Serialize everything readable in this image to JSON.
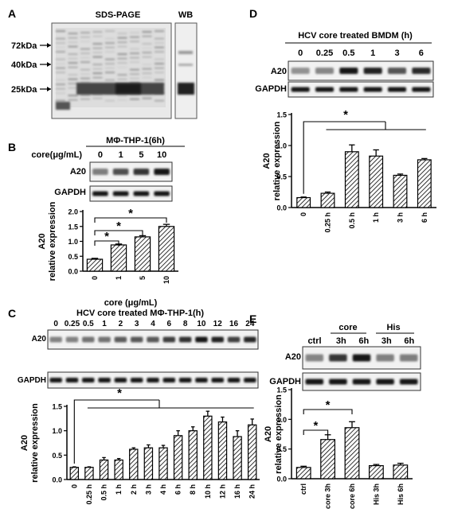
{
  "panels": {
    "A": {
      "label": "A",
      "gel_title": "SDS-PAGE",
      "wb_title": "WB",
      "markers": [
        "72kDa",
        "40kDa",
        "25kDa"
      ]
    },
    "B": {
      "label": "B",
      "title": "MΦ-THP-1(6h)",
      "dose_header": "core(μg/mL)",
      "doses": [
        "0",
        "1",
        "5",
        "10"
      ],
      "blots": [
        "A20",
        "GAPDH"
      ]
    },
    "C": {
      "label": "C",
      "title": "HCV  core  treated MΦ-THP-1(h)",
      "times": [
        "0",
        "0.25",
        "0.5",
        "1",
        "2",
        "3",
        "4",
        "6",
        "8",
        "10",
        "12",
        "16",
        "24"
      ],
      "blots": [
        "A20",
        "GAPDH"
      ]
    },
    "D": {
      "label": "D",
      "title": "HCV  core treated BMDM (h)",
      "times": [
        "0",
        "0.25",
        "0.5",
        "1",
        "3",
        "6"
      ],
      "blots": [
        "A20",
        "GAPDH"
      ]
    },
    "E": {
      "label": "E",
      "ctrl_label": "ctrl",
      "group_core": "core",
      "group_his": "His",
      "sub_labels": [
        "3h",
        "6h",
        "3h",
        "6h"
      ],
      "blots": [
        "A20",
        "GAPDH"
      ]
    }
  },
  "chart_data": [
    {
      "id": "B",
      "type": "bar",
      "categories": [
        "0",
        "1",
        "5",
        "10"
      ],
      "values": [
        0.4,
        0.88,
        1.15,
        1.5
      ],
      "errors": [
        0.03,
        0.03,
        0.04,
        0.07
      ],
      "xlabel": "core (μg/mL)",
      "ylabel": "A20 relative expression",
      "ylim": [
        0,
        2.0
      ],
      "yticks": [
        0,
        0.5,
        1.0,
        1.5,
        2.0
      ],
      "ytick_labels": [
        "0.0",
        "0.5",
        "1.0",
        "1.5",
        "2.0"
      ],
      "significance": [
        {
          "from": 0,
          "to": 1,
          "label": "*"
        },
        {
          "from": 0,
          "to": 2,
          "label": "*"
        },
        {
          "from": 0,
          "to": 3,
          "label": "*"
        }
      ]
    },
    {
      "id": "C",
      "type": "bar",
      "categories": [
        "0",
        "0.25 h",
        "0.5 h",
        "1 h",
        "2 h",
        "3 h",
        "4 h",
        "6 h",
        "8 h",
        "10 h",
        "12 h",
        "16 h",
        "24 h"
      ],
      "values": [
        0.25,
        0.25,
        0.4,
        0.4,
        0.62,
        0.65,
        0.65,
        0.9,
        1.0,
        1.3,
        1.18,
        0.88,
        1.12
      ],
      "errors": [
        0.01,
        0.01,
        0.05,
        0.03,
        0.03,
        0.06,
        0.05,
        0.1,
        0.08,
        0.1,
        0.1,
        0.12,
        0.12
      ],
      "ylabel": "A20 relative expression",
      "ylim": [
        0,
        1.5
      ],
      "yticks": [
        0,
        0.5,
        1.0,
        1.5
      ],
      "ytick_labels": [
        "0.0",
        "0.5",
        "1.0",
        "1.5"
      ],
      "significance_group": {
        "from": 0,
        "to_first": 1,
        "to_last": 12,
        "label": "*"
      }
    },
    {
      "id": "D",
      "type": "bar",
      "categories": [
        "0",
        "0.25 h",
        "0.5 h",
        "1 h",
        "3 h",
        "6 h"
      ],
      "values": [
        0.16,
        0.23,
        0.9,
        0.83,
        0.52,
        0.77
      ],
      "errors": [
        0.01,
        0.02,
        0.11,
        0.1,
        0.02,
        0.02
      ],
      "ylabel": "A20 relative expression",
      "ylim": [
        0,
        1.5
      ],
      "yticks": [
        0,
        0.5,
        1.0,
        1.5
      ],
      "ytick_labels": [
        "0.0",
        "0.5",
        "1.0",
        "1.5"
      ],
      "significance_group": {
        "from": 0,
        "to_first": 1,
        "to_last": 5,
        "label": "*"
      }
    },
    {
      "id": "E",
      "type": "bar",
      "categories": [
        "ctrl",
        "core 3h",
        "core 6h",
        "His 3h",
        "His 6h"
      ],
      "values": [
        0.19,
        0.66,
        0.86,
        0.22,
        0.23
      ],
      "errors": [
        0.02,
        0.08,
        0.1,
        0.02,
        0.03
      ],
      "ylabel": "A20 relative expression",
      "ylim": [
        0,
        1.5
      ],
      "yticks": [
        0,
        0.5,
        1.0,
        1.5
      ],
      "ytick_labels": [
        "0.0",
        "0.5",
        "1.0",
        "1.5"
      ],
      "significance": [
        {
          "from": 0,
          "to": 1,
          "label": "*"
        },
        {
          "from": 0,
          "to": 2,
          "label": "*"
        }
      ]
    }
  ]
}
